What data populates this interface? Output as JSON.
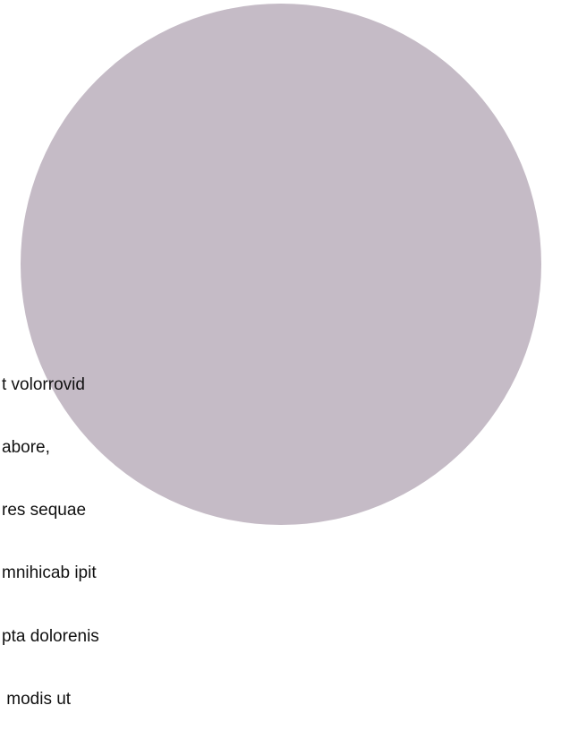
{
  "text_lines": [
    "t volorrovid",
    "abore,",
    "res sequae",
    "mnihicab ipit",
    "pta dolorenis",
    " modis ut"
  ]
}
